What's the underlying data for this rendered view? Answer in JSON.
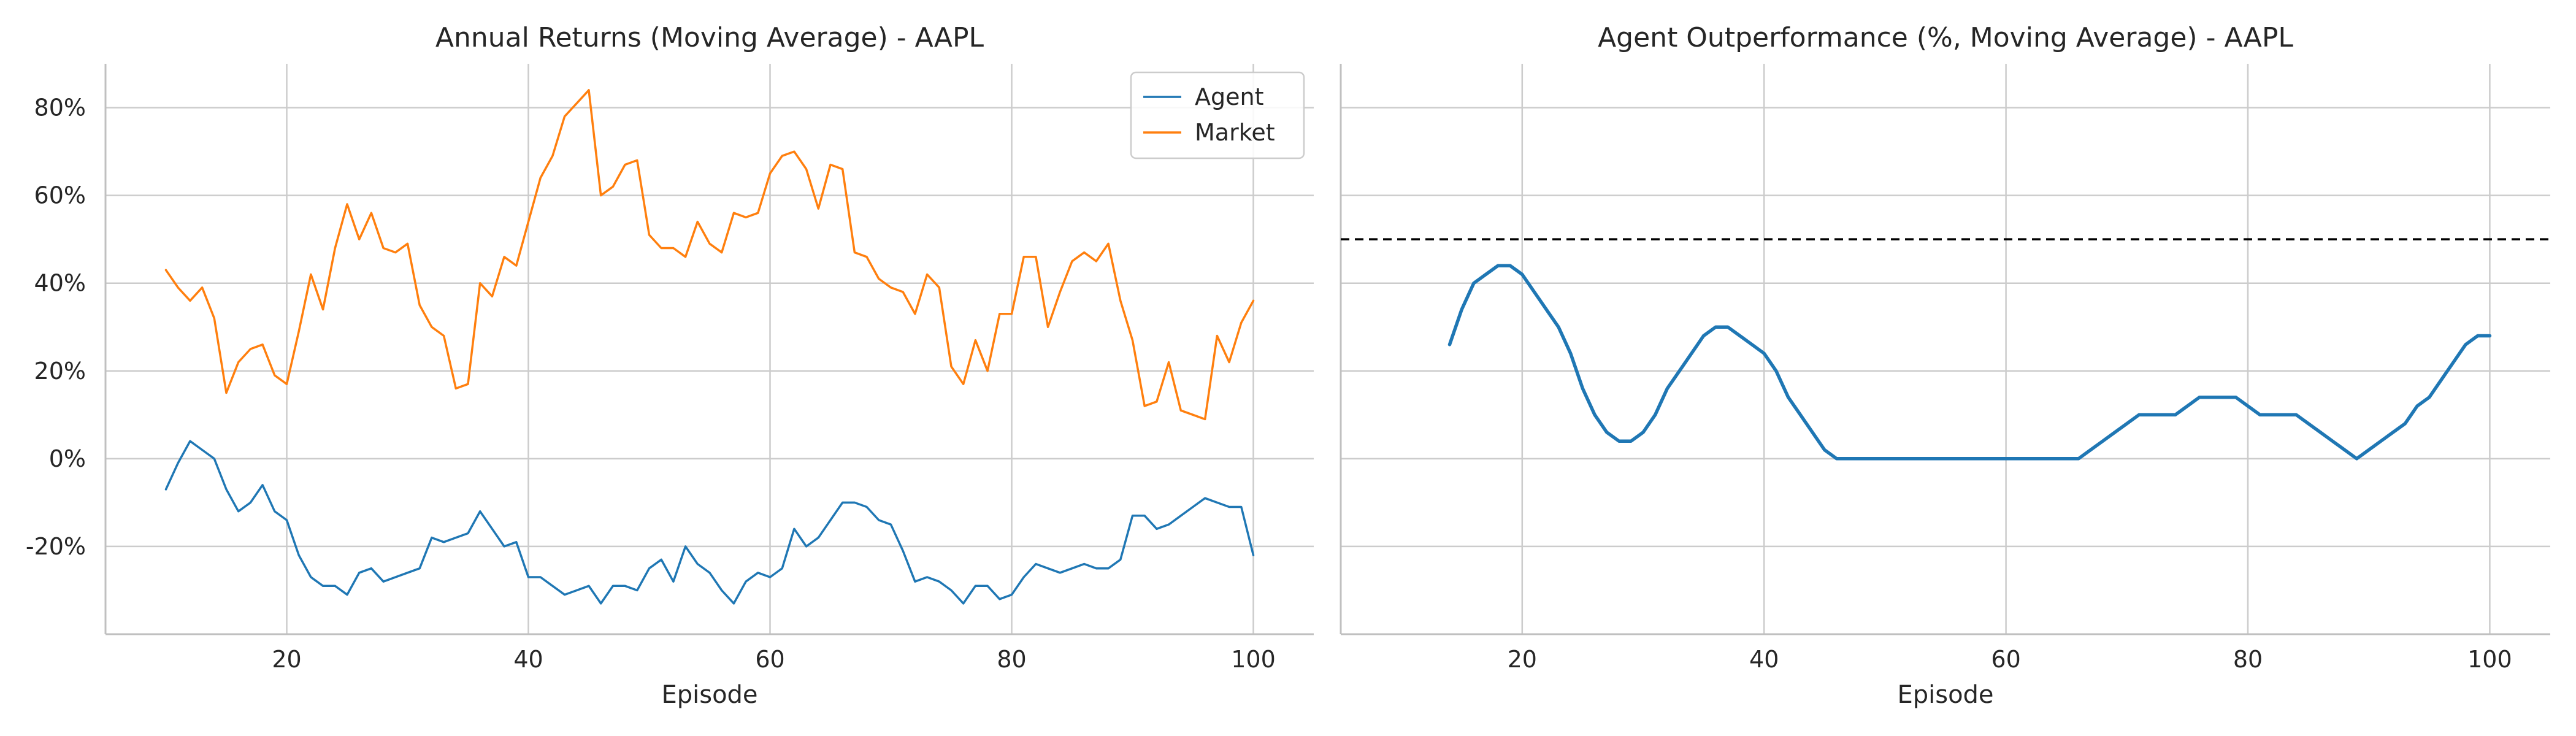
{
  "chart_data": [
    {
      "type": "line",
      "title": "Annual Returns (Moving Average) - AAPL",
      "xlabel": "Episode",
      "ylabel": "",
      "xlim": [
        5,
        105
      ],
      "ylim": [
        -0.4,
        0.9
      ],
      "xticks": [
        20,
        40,
        60,
        80,
        100
      ],
      "xtick_labels": [
        "20",
        "40",
        "60",
        "80",
        "100"
      ],
      "yticks": [
        -0.2,
        0.0,
        0.2,
        0.4,
        0.6,
        0.8
      ],
      "ytick_labels": [
        "-20%",
        "0%",
        "20%",
        "40%",
        "60%",
        "80%"
      ],
      "grid": true,
      "legend": "top-right",
      "x": [
        10,
        11,
        12,
        13,
        14,
        15,
        16,
        17,
        18,
        19,
        20,
        21,
        22,
        23,
        24,
        25,
        26,
        27,
        28,
        29,
        30,
        31,
        32,
        33,
        34,
        35,
        36,
        37,
        38,
        39,
        40,
        41,
        42,
        43,
        44,
        45,
        46,
        47,
        48,
        49,
        50,
        51,
        52,
        53,
        54,
        55,
        56,
        57,
        58,
        59,
        60,
        61,
        62,
        63,
        64,
        65,
        66,
        67,
        68,
        69,
        70,
        71,
        72,
        73,
        74,
        75,
        76,
        77,
        78,
        79,
        80,
        81,
        82,
        83,
        84,
        85,
        86,
        87,
        88,
        89,
        90,
        91,
        92,
        93,
        94,
        95,
        96,
        97,
        98,
        99,
        100
      ],
      "series": [
        {
          "name": "Agent",
          "color": "#1f77b4",
          "values": [
            -0.07,
            -0.01,
            0.04,
            0.02,
            0.0,
            -0.07,
            -0.12,
            -0.1,
            -0.06,
            -0.12,
            -0.14,
            -0.22,
            -0.27,
            -0.29,
            -0.29,
            -0.31,
            -0.26,
            -0.25,
            -0.28,
            -0.27,
            -0.26,
            -0.25,
            -0.18,
            -0.19,
            -0.18,
            -0.17,
            -0.12,
            -0.16,
            -0.2,
            -0.19,
            -0.27,
            -0.27,
            -0.29,
            -0.31,
            -0.3,
            -0.29,
            -0.33,
            -0.29,
            -0.29,
            -0.3,
            -0.25,
            -0.23,
            -0.28,
            -0.2,
            -0.24,
            -0.26,
            -0.3,
            -0.33,
            -0.28,
            -0.26,
            -0.27,
            -0.25,
            -0.16,
            -0.2,
            -0.18,
            -0.14,
            -0.1,
            -0.1,
            -0.11,
            -0.14,
            -0.15,
            -0.21,
            -0.28,
            -0.27,
            -0.28,
            -0.3,
            -0.33,
            -0.29,
            -0.29,
            -0.32,
            -0.31,
            -0.27,
            -0.24,
            -0.25,
            -0.26,
            -0.25,
            -0.24,
            -0.25,
            -0.25,
            -0.23,
            -0.13,
            -0.13,
            -0.16,
            -0.15,
            -0.13,
            -0.11,
            -0.09,
            -0.1,
            -0.11,
            -0.11,
            -0.22
          ]
        },
        {
          "name": "Market",
          "color": "#ff7f0e",
          "values": [
            0.43,
            0.39,
            0.36,
            0.39,
            0.32,
            0.15,
            0.22,
            0.25,
            0.26,
            0.19,
            0.17,
            0.29,
            0.42,
            0.34,
            0.48,
            0.58,
            0.5,
            0.56,
            0.48,
            0.47,
            0.49,
            0.35,
            0.3,
            0.28,
            0.16,
            0.17,
            0.4,
            0.37,
            0.46,
            0.44,
            0.54,
            0.64,
            0.69,
            0.78,
            0.81,
            0.84,
            0.6,
            0.62,
            0.67,
            0.68,
            0.51,
            0.48,
            0.48,
            0.46,
            0.54,
            0.49,
            0.47,
            0.56,
            0.55,
            0.56,
            0.65,
            0.69,
            0.7,
            0.66,
            0.57,
            0.67,
            0.66,
            0.47,
            0.46,
            0.41,
            0.39,
            0.38,
            0.33,
            0.42,
            0.39,
            0.21,
            0.17,
            0.27,
            0.2,
            0.33,
            0.33,
            0.46,
            0.46,
            0.3,
            0.38,
            0.45,
            0.47,
            0.45,
            0.49,
            0.36,
            0.27,
            0.12,
            0.13,
            0.22,
            0.11,
            0.1,
            0.09,
            0.28,
            0.22,
            0.31,
            0.36
          ]
        }
      ]
    },
    {
      "type": "line",
      "title": "Agent Outperformance (%, Moving Average) - AAPL",
      "xlabel": "Episode",
      "ylabel": "",
      "xlim": [
        5,
        105
      ],
      "ylim": [
        -40,
        90
      ],
      "xticks": [
        20,
        40,
        60,
        80,
        100
      ],
      "xtick_labels": [
        "20",
        "40",
        "60",
        "80",
        "100"
      ],
      "yticks": [
        -20,
        0,
        20,
        40,
        60,
        80
      ],
      "ytick_labels": [],
      "grid": true,
      "reference_line": {
        "y": 50,
        "style": "dashed",
        "color": "#000000"
      },
      "x": [
        14,
        15,
        16,
        17,
        18,
        19,
        20,
        21,
        22,
        23,
        24,
        25,
        26,
        27,
        28,
        29,
        30,
        31,
        32,
        33,
        34,
        35,
        36,
        37,
        38,
        39,
        40,
        41,
        42,
        43,
        44,
        45,
        46,
        47,
        48,
        49,
        50,
        51,
        52,
        53,
        54,
        55,
        56,
        57,
        58,
        59,
        60,
        61,
        62,
        63,
        64,
        65,
        66,
        67,
        68,
        69,
        70,
        71,
        72,
        73,
        74,
        75,
        76,
        77,
        78,
        79,
        80,
        81,
        82,
        83,
        84,
        85,
        86,
        87,
        88,
        89,
        90,
        91,
        92,
        93,
        94,
        95,
        96,
        97,
        98,
        99,
        100
      ],
      "series": [
        {
          "name": "",
          "color": "#1f77b4",
          "values": [
            26,
            34,
            40,
            42,
            44,
            44,
            42,
            38,
            34,
            30,
            24,
            16,
            10,
            6,
            4,
            4,
            6,
            10,
            16,
            20,
            24,
            28,
            30,
            30,
            28,
            26,
            24,
            20,
            14,
            10,
            6,
            2,
            0,
            0,
            0,
            0,
            0,
            0,
            0,
            0,
            0,
            0,
            0,
            0,
            0,
            0,
            0,
            0,
            0,
            0,
            0,
            0,
            0,
            2,
            4,
            6,
            8,
            10,
            10,
            10,
            10,
            12,
            14,
            14,
            14,
            14,
            12,
            10,
            10,
            10,
            10,
            8,
            6,
            4,
            2,
            0,
            2,
            4,
            6,
            8,
            12,
            14,
            18,
            22,
            26,
            28,
            28
          ]
        }
      ]
    }
  ]
}
